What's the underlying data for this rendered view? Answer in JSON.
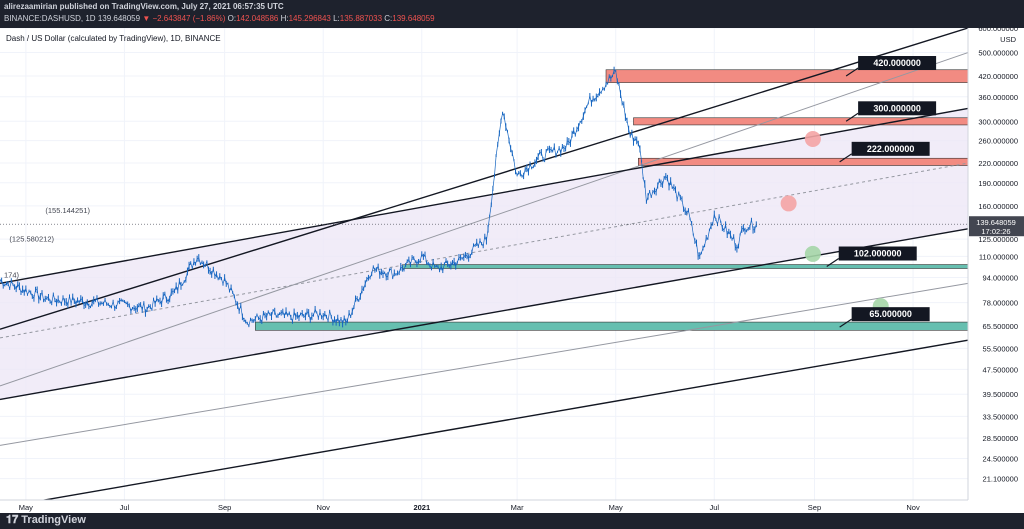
{
  "header": {
    "published": "alirezaamirian published on TradingView.com, July 27, 2021 06:57:35 UTC",
    "symbol": "BINANCE:DASHUSD, 1D",
    "last": "139.648059",
    "change": "▼ −2.643847 (−1.86%)",
    "o_label": "O:",
    "o_val": "142.048586",
    "h_label": "H:",
    "h_val": "145.296843",
    "l_label": "L:",
    "l_val": "135.887033",
    "c_label": "C:",
    "c_val": "139.648059"
  },
  "footer": {
    "logo_text": "TradingView"
  },
  "colors": {
    "up": "#26a69a",
    "candle": "#1565c0",
    "down": "#ef5350",
    "resistance": "#f28b82",
    "support": "#66bfb0",
    "channel_fill": "#ede7f6"
  },
  "chart_data": {
    "type": "line",
    "title": "Dash / US Dollar (calculated by TradingView), 1D, BINANCE",
    "y_scale": "log",
    "y_unit": "USD",
    "ylim": [
      18,
      600
    ],
    "x_tick_labels": [
      "May",
      "Jul",
      "Sep",
      "Nov",
      "2021",
      "Mar",
      "May",
      "Jul",
      "Sep",
      "Nov"
    ],
    "y_tick_labels": [
      "600.000000",
      "500.000000",
      "420.000000",
      "360.000000",
      "300.000000",
      "260.000000",
      "220.000000",
      "190.000000",
      "160.000000",
      "125.000000",
      "110.000000",
      "94.000000",
      "78.000000",
      "65.500000",
      "55.500000",
      "47.500000",
      "39.500000",
      "33.500000",
      "28.500000",
      "24.500000",
      "21.100000"
    ],
    "y_tick_values": [
      600,
      500,
      420,
      360,
      300,
      260,
      220,
      190,
      160,
      125,
      110,
      94,
      78,
      65.5,
      55.5,
      47.5,
      39.5,
      33.5,
      28.5,
      24.5,
      21.1
    ],
    "price_label": "139.648059",
    "countdown_label": "17:02:26",
    "series": [
      {
        "x": [
          "2020-04-15",
          "2020-05-15",
          "2020-06-15",
          "2020-07-15",
          "2020-08-01",
          "2020-08-15",
          "2020-09-01",
          "2020-09-15",
          "2020-10-01",
          "2020-10-15",
          "2020-11-01",
          "2020-11-15",
          "2020-12-01",
          "2020-12-15",
          "2021-01-01",
          "2021-01-10",
          "2021-01-25",
          "2021-02-10",
          "2021-02-20",
          "2021-03-01",
          "2021-03-15",
          "2021-04-01",
          "2021-04-15",
          "2021-05-01",
          "2021-05-10",
          "2021-05-15",
          "2021-05-20",
          "2021-06-01",
          "2021-06-15",
          "2021-06-22",
          "2021-07-01",
          "2021-07-15",
          "2021-07-20",
          "2021-07-27"
        ],
        "y": [
          92,
          80,
          78,
          75,
          84,
          110,
          92,
          68,
          71,
          70,
          72,
          67,
          100,
          97,
          110,
          100,
          107,
          125,
          330,
          200,
          230,
          250,
          350,
          430,
          270,
          260,
          170,
          200,
          150,
          108,
          150,
          120,
          138,
          139.6
        ]
      }
    ],
    "annotations": [
      "(155.144251)",
      "(125.580212)",
      "174)"
    ],
    "levels": [
      {
        "label": "420.000000",
        "value": 420,
        "kind": "resistance"
      },
      {
        "label": "300.000000",
        "value": 300,
        "kind": "resistance"
      },
      {
        "label": "222.000000",
        "value": 222,
        "kind": "resistance"
      },
      {
        "label": "102.000000",
        "value": 102,
        "kind": "support"
      },
      {
        "label": "65.000000",
        "value": 65,
        "kind": "support"
      }
    ],
    "channel_lines": [
      {
        "style": "solid-black",
        "y_left": 64,
        "y_right": 600
      },
      {
        "style": "solid-grey",
        "y_left": 42,
        "y_right": 500
      },
      {
        "style": "solid-black",
        "y_left": 90,
        "y_right": 330
      },
      {
        "style": "dashed-grey",
        "y_left": 60,
        "y_right": 220
      },
      {
        "style": "solid-black",
        "y_left": 38,
        "y_right": 135
      },
      {
        "style": "solid-grey",
        "y_left": 27,
        "y_right": 90
      },
      {
        "style": "solid-black",
        "y_left": 17,
        "y_right": 59
      }
    ],
    "markers": [
      {
        "date": "2021-08-31",
        "value": 263,
        "color": "red"
      },
      {
        "date": "2021-08-16",
        "value": 163,
        "color": "red"
      },
      {
        "date": "2021-08-31",
        "value": 112,
        "color": "green"
      },
      {
        "date": "2021-10-12",
        "value": 76,
        "color": "green"
      }
    ],
    "grid": true,
    "legend": "none"
  }
}
